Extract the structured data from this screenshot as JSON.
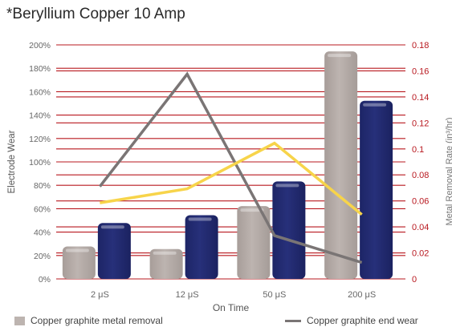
{
  "chart_data": {
    "title": "*Beryllium Copper 10 Amp",
    "xlabel": "On Time",
    "ylabel_left": "Electrode Wear",
    "ylabel_right": "Metal Removal Rate (in³/hr)",
    "categories": [
      "2 μS",
      "12 μS",
      "50 μS",
      "200 μS"
    ],
    "left_axis": {
      "min": 0,
      "max": 200,
      "ticks": [
        "0%",
        "20%",
        "40%",
        "60%",
        "80%",
        "100%",
        "120%",
        "140%",
        "160%",
        "180%",
        "200%"
      ],
      "tick_values": [
        0,
        20,
        40,
        60,
        80,
        100,
        120,
        140,
        160,
        180,
        200
      ]
    },
    "right_axis": {
      "min": 0,
      "max": 0.18,
      "ticks": [
        "0",
        "0.02",
        "0.04",
        "0.06",
        "0.08",
        "0.1",
        "0.12",
        "0.14",
        "0.16",
        "0.18"
      ],
      "tick_values": [
        0,
        0.02,
        0.04,
        0.06,
        0.08,
        0.1,
        0.12,
        0.14,
        0.16,
        0.18
      ]
    },
    "bar_series": [
      {
        "name": "Copper graphite metal removal",
        "axis": "right",
        "values": [
          0.025,
          0.023,
          0.056,
          0.175
        ],
        "color": "#bdb4b0"
      },
      {
        "values": [
          0.043,
          0.049,
          0.075,
          0.137
        ],
        "axis": "right",
        "color": "#27307a"
      }
    ],
    "line_series": [
      {
        "name": "Copper graphite end wear",
        "axis": "left",
        "values": [
          79,
          175,
          37,
          14
        ],
        "color": "#7a7575"
      },
      {
        "values": [
          65,
          77,
          116,
          55
        ],
        "axis": "left",
        "color": "#f7d44a"
      }
    ],
    "gridline_color": "#b8181f",
    "grid": true,
    "legend_position": "bottom"
  }
}
